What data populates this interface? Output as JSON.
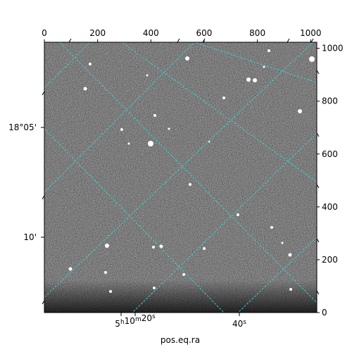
{
  "chart_data": {
    "type": "image",
    "title": "",
    "xlabel": "pos.eq.ra",
    "ylabel": "",
    "pixel_axes": {
      "x_ticks": [
        0,
        200,
        400,
        600,
        800,
        1000
      ],
      "y_ticks": [
        0,
        200,
        400,
        600,
        800,
        1000
      ],
      "xlim": [
        0,
        1023
      ],
      "ylim": [
        0,
        1023
      ]
    },
    "world_axes": {
      "ra_ticks": [
        {
          "label_main": "5",
          "sup1": "h",
          "mid": "10",
          "sup2": "m",
          "end": "20",
          "sup3": "s"
        },
        {
          "label_main": "40",
          "sup1": "s",
          "mid": "",
          "sup2": "",
          "end": "",
          "sup3": ""
        }
      ],
      "dec_ticks": [
        "18°05'",
        "10'"
      ]
    },
    "grid": true,
    "grid_color": "#40d0d0",
    "colormap": "gray"
  }
}
